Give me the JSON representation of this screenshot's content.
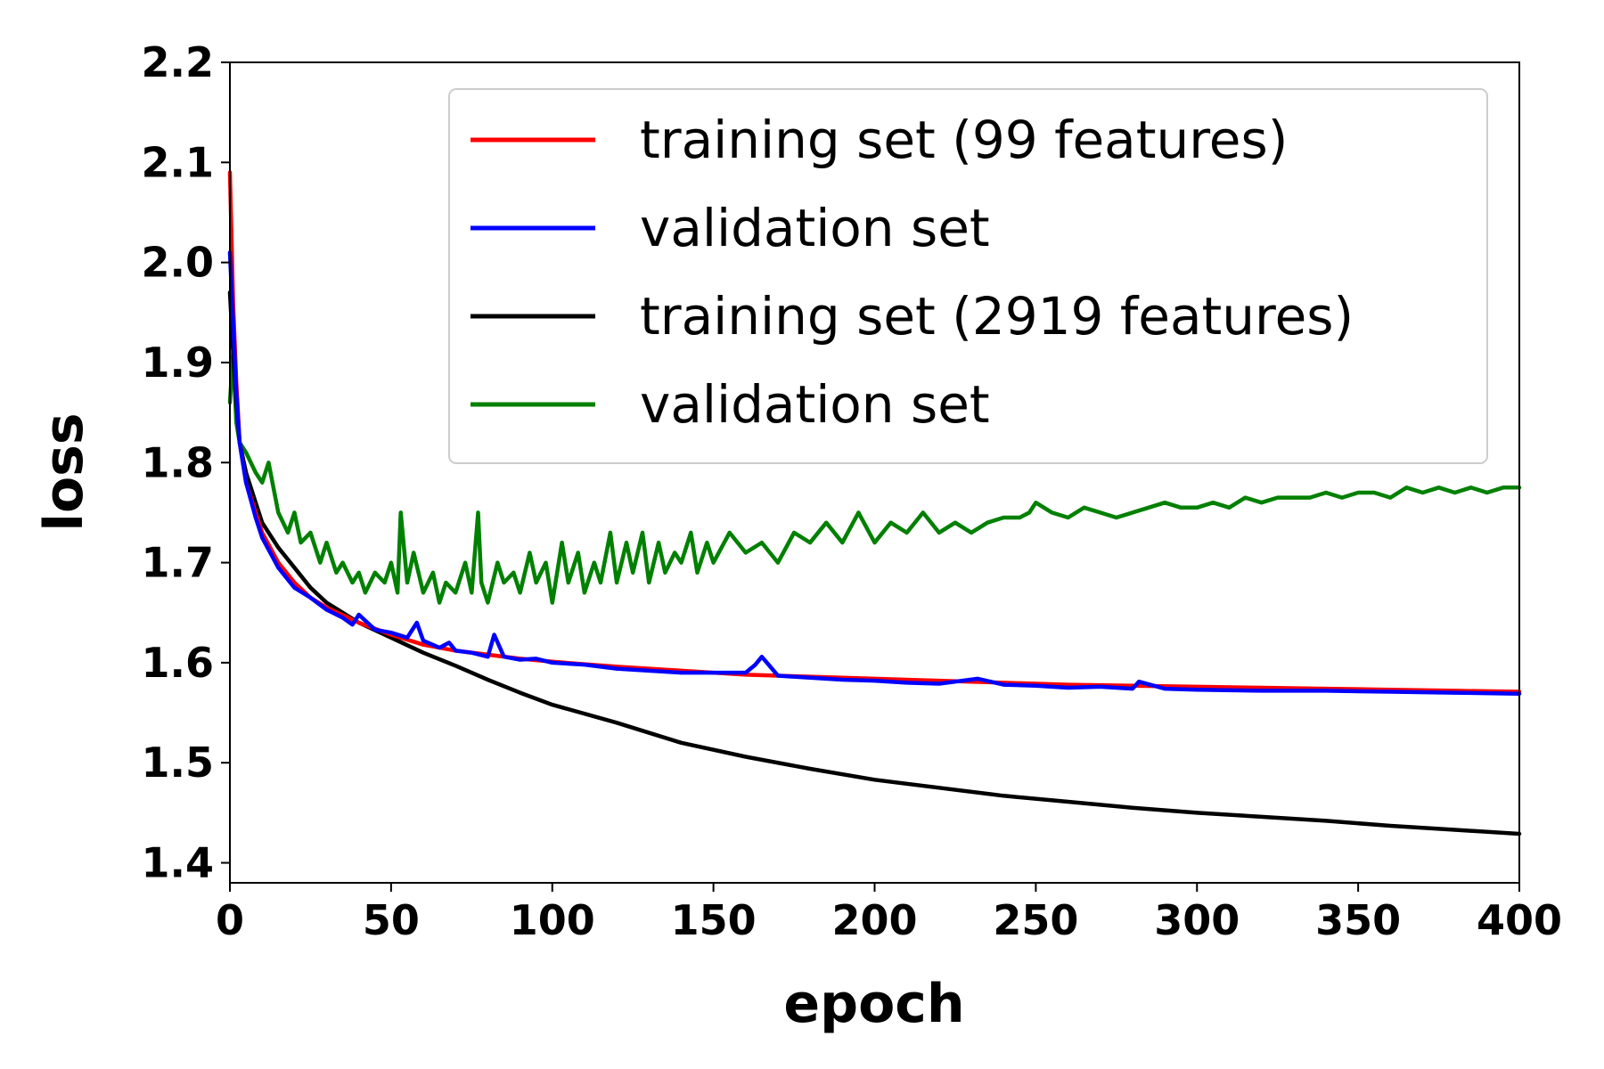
{
  "chart_data": {
    "type": "line",
    "title": "",
    "xlabel": "epoch",
    "ylabel": "loss",
    "xlim": [
      0,
      400
    ],
    "ylim": [
      1.38,
      2.2
    ],
    "xticks": [
      0,
      50,
      100,
      150,
      200,
      250,
      300,
      350,
      400
    ],
    "xtick_labels": [
      "0",
      "50",
      "100",
      "150",
      "200",
      "250",
      "300",
      "350",
      "400"
    ],
    "yticks": [
      1.4,
      1.5,
      1.6,
      1.7,
      1.8,
      1.9,
      2.0,
      2.1,
      2.2
    ],
    "ytick_labels": [
      "1.4",
      "1.5",
      "1.6",
      "1.7",
      "1.8",
      "1.9",
      "2.0",
      "2.1",
      "2.2"
    ],
    "grid": false,
    "legend_position": "top-right",
    "series": [
      {
        "name": "training set (99 features)",
        "color": "#ff0000",
        "x": [
          0,
          1,
          2,
          3,
          5,
          8,
          10,
          15,
          20,
          25,
          30,
          40,
          50,
          60,
          70,
          80,
          90,
          100,
          120,
          140,
          160,
          180,
          200,
          220,
          240,
          260,
          280,
          300,
          320,
          340,
          360,
          380,
          400
        ],
        "y": [
          2.09,
          1.96,
          1.88,
          1.82,
          1.78,
          1.75,
          1.73,
          1.7,
          1.68,
          1.665,
          1.655,
          1.64,
          1.628,
          1.618,
          1.612,
          1.608,
          1.604,
          1.601,
          1.596,
          1.592,
          1.588,
          1.586,
          1.584,
          1.582,
          1.58,
          1.578,
          1.577,
          1.576,
          1.575,
          1.574,
          1.573,
          1.572,
          1.571
        ]
      },
      {
        "name": "validation set",
        "color": "#0000ff",
        "x": [
          0,
          1,
          2,
          3,
          5,
          8,
          10,
          15,
          20,
          25,
          30,
          35,
          38,
          40,
          45,
          50,
          55,
          58,
          60,
          65,
          68,
          70,
          75,
          80,
          82,
          85,
          90,
          95,
          100,
          110,
          120,
          130,
          140,
          150,
          155,
          160,
          163,
          165,
          170,
          180,
          190,
          200,
          210,
          220,
          232,
          240,
          250,
          260,
          270,
          280,
          282,
          290,
          300,
          320,
          340,
          360,
          380,
          400
        ],
        "y": [
          2.01,
          1.94,
          1.87,
          1.82,
          1.78,
          1.745,
          1.725,
          1.695,
          1.675,
          1.665,
          1.653,
          1.645,
          1.638,
          1.648,
          1.633,
          1.63,
          1.625,
          1.64,
          1.622,
          1.615,
          1.62,
          1.612,
          1.61,
          1.606,
          1.628,
          1.606,
          1.603,
          1.604,
          1.6,
          1.598,
          1.594,
          1.592,
          1.59,
          1.59,
          1.59,
          1.59,
          1.598,
          1.606,
          1.587,
          1.585,
          1.583,
          1.582,
          1.58,
          1.579,
          1.584,
          1.578,
          1.577,
          1.575,
          1.576,
          1.574,
          1.581,
          1.574,
          1.573,
          1.572,
          1.572,
          1.571,
          1.57,
          1.569
        ]
      },
      {
        "name": "training set (2919 features)",
        "color": "#000000",
        "x": [
          0,
          1,
          2,
          3,
          5,
          8,
          10,
          15,
          20,
          25,
          30,
          40,
          50,
          60,
          70,
          80,
          90,
          100,
          120,
          140,
          160,
          180,
          200,
          220,
          240,
          260,
          280,
          300,
          320,
          340,
          360,
          380,
          400
        ],
        "y": [
          1.97,
          1.91,
          1.86,
          1.82,
          1.79,
          1.76,
          1.74,
          1.715,
          1.695,
          1.675,
          1.66,
          1.64,
          1.625,
          1.61,
          1.597,
          1.583,
          1.57,
          1.558,
          1.54,
          1.52,
          1.506,
          1.494,
          1.483,
          1.475,
          1.467,
          1.461,
          1.455,
          1.45,
          1.446,
          1.442,
          1.437,
          1.433,
          1.429
        ]
      },
      {
        "name": "validation set",
        "color": "#008000",
        "x": [
          0,
          1,
          2,
          3,
          5,
          8,
          10,
          12,
          15,
          18,
          20,
          22,
          25,
          28,
          30,
          33,
          35,
          38,
          40,
          42,
          45,
          48,
          50,
          52,
          53,
          55,
          57,
          60,
          63,
          65,
          67,
          70,
          73,
          75,
          77,
          78,
          80,
          83,
          85,
          88,
          90,
          93,
          95,
          98,
          100,
          103,
          105,
          108,
          110,
          113,
          115,
          118,
          120,
          123,
          125,
          128,
          130,
          133,
          135,
          138,
          140,
          143,
          145,
          148,
          150,
          155,
          160,
          165,
          170,
          175,
          180,
          185,
          190,
          195,
          200,
          205,
          210,
          215,
          220,
          225,
          230,
          235,
          240,
          245,
          248,
          250,
          255,
          260,
          265,
          270,
          275,
          280,
          285,
          290,
          295,
          300,
          305,
          310,
          315,
          320,
          325,
          330,
          335,
          340,
          345,
          350,
          355,
          360,
          365,
          370,
          375,
          380,
          385,
          390,
          395,
          400
        ],
        "y": [
          1.86,
          1.91,
          1.84,
          1.82,
          1.81,
          1.79,
          1.78,
          1.8,
          1.75,
          1.73,
          1.75,
          1.72,
          1.73,
          1.7,
          1.72,
          1.69,
          1.7,
          1.68,
          1.69,
          1.67,
          1.69,
          1.68,
          1.7,
          1.67,
          1.75,
          1.68,
          1.71,
          1.67,
          1.69,
          1.66,
          1.68,
          1.67,
          1.7,
          1.67,
          1.75,
          1.68,
          1.66,
          1.7,
          1.68,
          1.69,
          1.67,
          1.71,
          1.68,
          1.7,
          1.66,
          1.72,
          1.68,
          1.71,
          1.67,
          1.7,
          1.68,
          1.73,
          1.68,
          1.72,
          1.69,
          1.73,
          1.68,
          1.72,
          1.69,
          1.71,
          1.7,
          1.73,
          1.69,
          1.72,
          1.7,
          1.73,
          1.71,
          1.72,
          1.7,
          1.73,
          1.72,
          1.74,
          1.72,
          1.75,
          1.72,
          1.74,
          1.73,
          1.75,
          1.73,
          1.74,
          1.73,
          1.74,
          1.745,
          1.745,
          1.75,
          1.76,
          1.75,
          1.745,
          1.755,
          1.75,
          1.745,
          1.75,
          1.755,
          1.76,
          1.755,
          1.755,
          1.76,
          1.755,
          1.765,
          1.76,
          1.765,
          1.765,
          1.765,
          1.77,
          1.765,
          1.77,
          1.77,
          1.765,
          1.775,
          1.77,
          1.775,
          1.77,
          1.775,
          1.77,
          1.775,
          1.775
        ]
      }
    ]
  }
}
